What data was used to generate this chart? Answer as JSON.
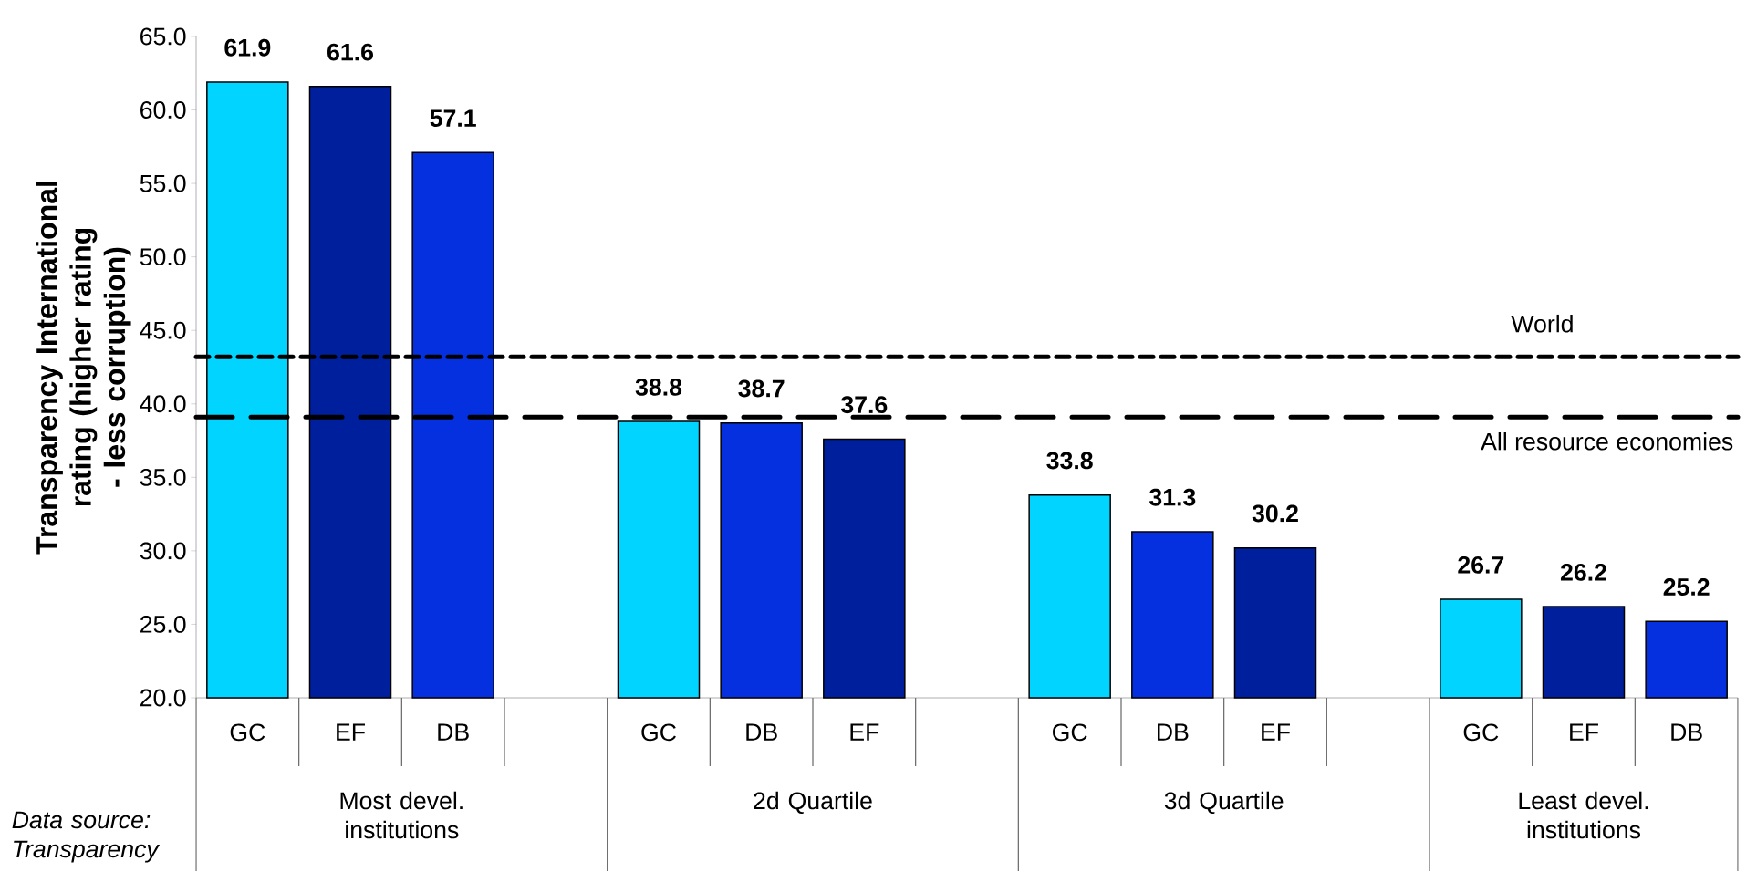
{
  "chart_data": {
    "type": "bar",
    "ylabel": "Transparency International rating (higher rating - less corruption)",
    "categories": [
      "GC",
      "EF",
      "DB",
      null,
      "GC",
      "DB",
      "EF",
      null,
      "GC",
      "DB",
      "EF",
      null,
      "GC",
      "EF",
      "DB"
    ],
    "values": [
      61.9,
      61.6,
      57.1,
      null,
      38.8,
      38.7,
      37.6,
      null,
      33.8,
      31.3,
      30.2,
      null,
      26.7,
      26.2,
      25.2
    ],
    "colors": [
      "#00d4ff",
      "#001f9c",
      "#0430e0",
      null,
      "#00d4ff",
      "#0430e0",
      "#001f9c",
      null,
      "#00d4ff",
      "#0430e0",
      "#001f9c",
      null,
      "#00d4ff",
      "#001f9c",
      "#0430e0"
    ],
    "ylim": [
      20,
      65
    ],
    "yticks": [
      {
        "value": 20,
        "label": "20.0"
      },
      {
        "value": 25,
        "label": "25.0"
      },
      {
        "value": 30,
        "label": "30.0"
      },
      {
        "value": 35,
        "label": "35.0"
      },
      {
        "value": 40,
        "label": "40.0"
      },
      {
        "value": 45,
        "label": "45.0"
      },
      {
        "value": 50,
        "label": "50.0"
      },
      {
        "value": 55,
        "label": "55.0"
      },
      {
        "value": 60,
        "label": "60.0"
      },
      {
        "value": 65,
        "label": "65.0"
      }
    ],
    "data_labels": true,
    "grid": false,
    "ref_lines": [
      {
        "axis": "y",
        "value": 43.2,
        "label": "World",
        "line_style": "dotted",
        "color": "#000000"
      },
      {
        "axis": "y",
        "value": 39.1,
        "label": "All resource economies",
        "line_style": "dashed",
        "color": "#000000"
      }
    ],
    "annotations": [
      "Most devel. institutions",
      "2d Quartile",
      "3d Quartile",
      "Least devel. institutions",
      "Data source: Transparency"
    ]
  }
}
